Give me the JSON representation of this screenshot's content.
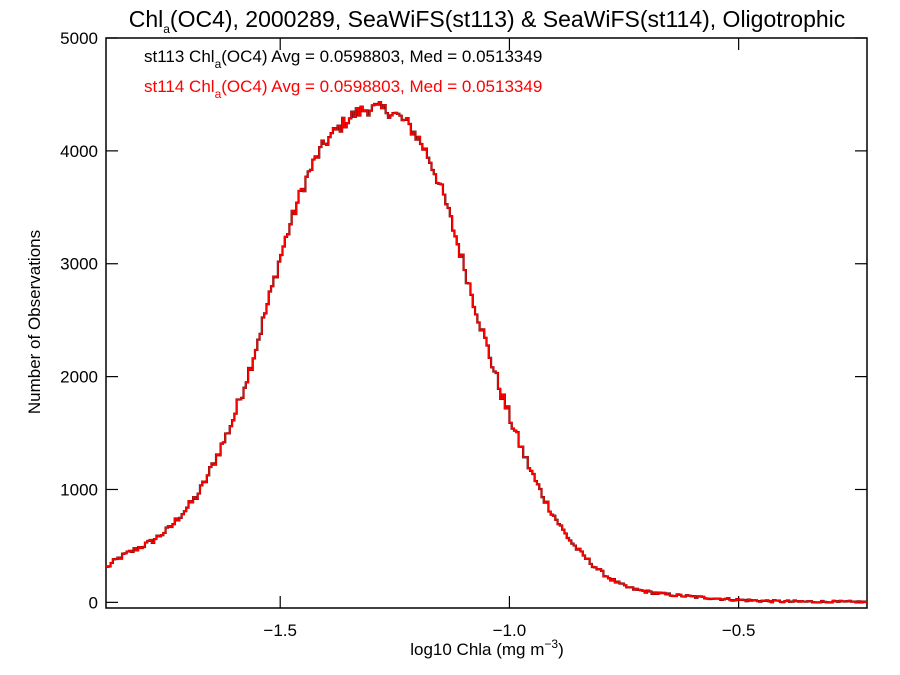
{
  "chart_data": {
    "type": "line",
    "style": "histogram-step",
    "title": {
      "pre": "Chl",
      "sub": "a",
      "post": "(OC4), 2000289, SeaWiFS(st113) & SeaWiFS(st114), Oligotrophic"
    },
    "xlabel": {
      "pre": "log10 Chla (mg m",
      "sup": "−3",
      "post": ")"
    },
    "ylabel": "Number of Observations",
    "xlim": [
      -1.88,
      -0.22
    ],
    "ylim": [
      -50,
      5000
    ],
    "xticks": [
      {
        "value": -1.5,
        "label": "−1.5"
      },
      {
        "value": -1.0,
        "label": "−1.0"
      },
      {
        "value": -0.5,
        "label": "−0.5"
      }
    ],
    "yticks": [
      {
        "value": 0,
        "label": "0"
      },
      {
        "value": 1000,
        "label": "1000"
      },
      {
        "value": 2000,
        "label": "2000"
      },
      {
        "value": 3000,
        "label": "3000"
      },
      {
        "value": 4000,
        "label": "4000"
      },
      {
        "value": 5000,
        "label": "5000"
      }
    ],
    "grid": false,
    "legend_position": "top-left",
    "series": [
      {
        "name": "st113",
        "color": "#000000",
        "legend": {
          "pre": "st113 Chl",
          "sub": "a",
          "post": "(OC4) Avg = 0.0598803, Med = 0.0513349"
        }
      },
      {
        "name": "st114",
        "color": "#ff0000",
        "legend": {
          "pre": "st114 Chl",
          "sub": "a",
          "post": "(OC4) Avg = 0.0598803, Med = 0.0513349"
        }
      }
    ],
    "curve_points": [
      [
        -1.88,
        300
      ],
      [
        -1.86,
        370
      ],
      [
        -1.84,
        420
      ],
      [
        -1.82,
        460
      ],
      [
        -1.8,
        500
      ],
      [
        -1.78,
        540
      ],
      [
        -1.76,
        600
      ],
      [
        -1.74,
        660
      ],
      [
        -1.72,
        760
      ],
      [
        -1.7,
        850
      ],
      [
        -1.68,
        950
      ],
      [
        -1.66,
        1100
      ],
      [
        -1.64,
        1280
      ],
      [
        -1.62,
        1450
      ],
      [
        -1.6,
        1650
      ],
      [
        -1.58,
        1900
      ],
      [
        -1.56,
        2150
      ],
      [
        -1.54,
        2450
      ],
      [
        -1.52,
        2750
      ],
      [
        -1.5,
        3050
      ],
      [
        -1.48,
        3320
      ],
      [
        -1.46,
        3570
      ],
      [
        -1.44,
        3780
      ],
      [
        -1.42,
        3950
      ],
      [
        -1.4,
        4080
      ],
      [
        -1.38,
        4170
      ],
      [
        -1.36,
        4250
      ],
      [
        -1.34,
        4320
      ],
      [
        -1.32,
        4360
      ],
      [
        -1.3,
        4380
      ],
      [
        -1.28,
        4370
      ],
      [
        -1.26,
        4350
      ],
      [
        -1.24,
        4300
      ],
      [
        -1.22,
        4230
      ],
      [
        -1.2,
        4120
      ],
      [
        -1.18,
        3980
      ],
      [
        -1.16,
        3790
      ],
      [
        -1.14,
        3560
      ],
      [
        -1.12,
        3280
      ],
      [
        -1.1,
        3000
      ],
      [
        -1.08,
        2700
      ],
      [
        -1.06,
        2420
      ],
      [
        -1.04,
        2150
      ],
      [
        -1.02,
        1880
      ],
      [
        -1.0,
        1650
      ],
      [
        -0.98,
        1430
      ],
      [
        -0.96,
        1230
      ],
      [
        -0.94,
        1050
      ],
      [
        -0.92,
        890
      ],
      [
        -0.9,
        750
      ],
      [
        -0.88,
        620
      ],
      [
        -0.86,
        510
      ],
      [
        -0.84,
        420
      ],
      [
        -0.82,
        340
      ],
      [
        -0.8,
        270
      ],
      [
        -0.78,
        210
      ],
      [
        -0.76,
        165
      ],
      [
        -0.74,
        130
      ],
      [
        -0.72,
        110
      ],
      [
        -0.7,
        95
      ],
      [
        -0.68,
        82
      ],
      [
        -0.66,
        72
      ],
      [
        -0.64,
        64
      ],
      [
        -0.62,
        57
      ],
      [
        -0.6,
        50
      ],
      [
        -0.58,
        44
      ],
      [
        -0.56,
        38
      ],
      [
        -0.54,
        32
      ],
      [
        -0.52,
        27
      ],
      [
        -0.5,
        22
      ],
      [
        -0.48,
        18
      ],
      [
        -0.46,
        15
      ],
      [
        -0.44,
        12
      ],
      [
        -0.42,
        10
      ],
      [
        -0.4,
        8
      ],
      [
        -0.35,
        6
      ],
      [
        -0.3,
        4
      ],
      [
        -0.25,
        3
      ],
      [
        -0.22,
        3
      ]
    ]
  }
}
